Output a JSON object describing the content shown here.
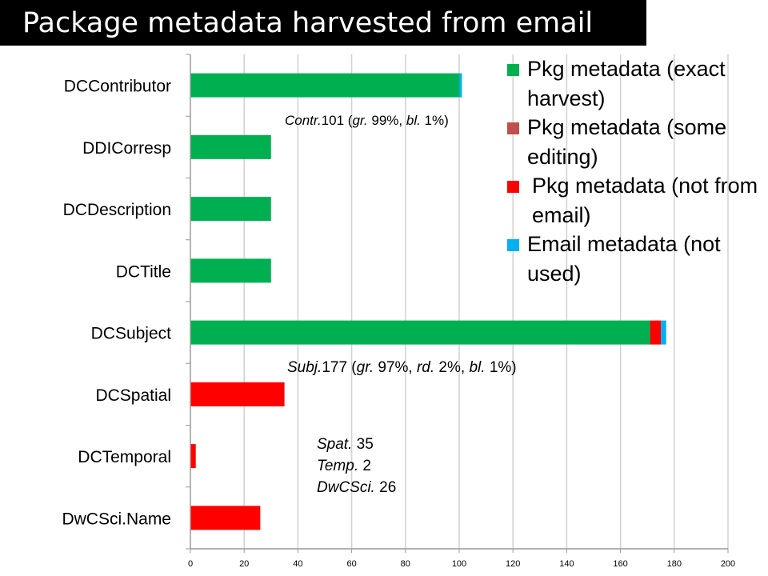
{
  "title": "Package metadata harvested from email",
  "chart_data": {
    "type": "bar",
    "orientation": "horizontal",
    "stacked": true,
    "categories": [
      "DCContributor",
      "DDICorresp",
      "DCDescription",
      "DCTitle",
      "DCSubject",
      "DCSpatial",
      "DCTemporal",
      "DwCSci.Name"
    ],
    "series": [
      {
        "name": "Pkg metadata (exact harvest)",
        "color": "#00b050",
        "values": [
          100,
          30,
          30,
          30,
          171,
          0,
          0,
          0
        ]
      },
      {
        "name": "Pkg metadata (some editing)",
        "color": "#c0504d",
        "values": [
          0,
          0,
          0,
          0,
          0,
          0,
          0,
          0
        ]
      },
      {
        "name": "Pkg metadata (not from email)",
        "color": "#ff0000",
        "values": [
          0,
          0,
          0,
          0,
          4,
          35,
          2,
          26
        ]
      },
      {
        "name": "Email metadata (not used)",
        "color": "#00b0f0",
        "values": [
          1,
          0,
          0,
          0,
          2,
          0,
          0,
          0
        ]
      }
    ],
    "xlim": [
      0,
      200
    ],
    "xticks": [
      "0",
      "20",
      "40",
      "60",
      "80",
      "100",
      "120",
      "140",
      "160",
      "180",
      "200"
    ],
    "grid": true,
    "legend_position": "top-right",
    "annotations": {
      "contributor": {
        "label": "Contr.",
        "total": "101",
        "open": " (",
        "g": "gr.",
        "g_val": " 99%, ",
        "b": "bl.",
        "b_val": " 1%)"
      },
      "subject": {
        "label": "Subj.",
        "total": "177",
        "open": " (",
        "g": "gr.",
        "g_val": " 97%, ",
        "r": "rd.",
        "r_val": " 2%, ",
        "b": "bl.",
        "b_val": " 1%)"
      },
      "spatial": {
        "label": "Spat.",
        "value": " 35"
      },
      "temporal": {
        "label": "Temp.",
        "value": " 2"
      },
      "dwc": {
        "label": "DwCSci.",
        "value": " 26"
      }
    }
  }
}
